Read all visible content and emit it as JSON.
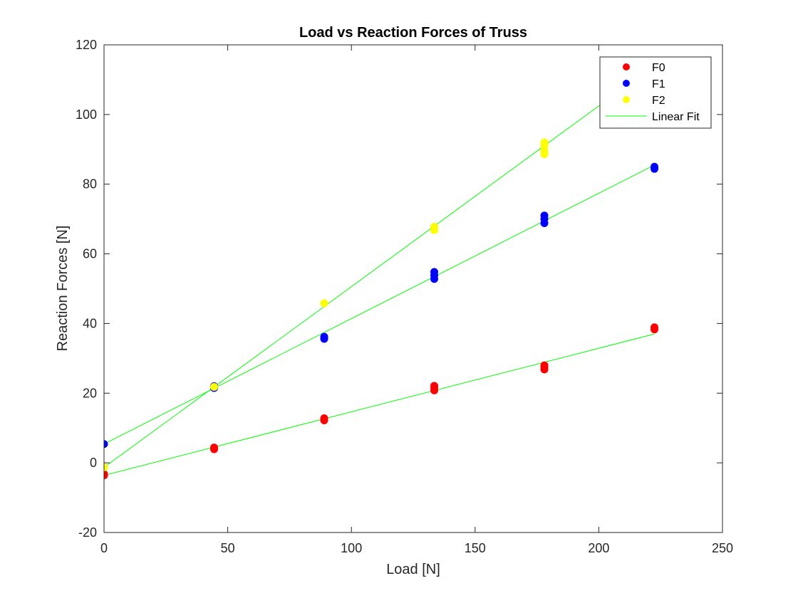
{
  "chart_data": {
    "type": "scatter",
    "title": "Load vs Reaction Forces of Truss",
    "xlabel": "Load [N]",
    "ylabel": "Reaction Forces [N]",
    "xlim": [
      0,
      250
    ],
    "ylim": [
      -20,
      120
    ],
    "xticks": [
      0,
      50,
      100,
      150,
      200,
      250
    ],
    "yticks": [
      -20,
      0,
      20,
      40,
      60,
      80,
      100,
      120
    ],
    "grid": false,
    "legend_position": "top-right",
    "series": [
      {
        "name": "F0",
        "color": "#ff0000",
        "marker": "circle",
        "x": [
          0,
          0,
          44.5,
          44.5,
          89,
          89,
          133.5,
          133.5,
          133.5,
          178,
          178,
          178,
          222.5,
          222.5
        ],
        "y": [
          -3.6,
          -3.2,
          3.9,
          4.4,
          12.2,
          12.8,
          20.8,
          21.5,
          22.1,
          26.8,
          27.4,
          28.0,
          38.3,
          38.9
        ]
      },
      {
        "name": "F1",
        "color": "#0000ff",
        "marker": "circle",
        "x": [
          0,
          44.5,
          44.5,
          89,
          89,
          133.5,
          133.5,
          133.5,
          178,
          178,
          178,
          222.5,
          222.5
        ],
        "y": [
          5.4,
          21.5,
          22.0,
          35.6,
          36.2,
          52.8,
          53.8,
          54.8,
          68.8,
          70.0,
          71.0,
          84.4,
          85.0
        ]
      },
      {
        "name": "F2",
        "color": "#ffff00",
        "marker": "circle",
        "x": [
          0,
          44.5,
          89,
          133.5,
          133.5,
          178,
          178,
          178,
          178
        ],
        "y": [
          -1.3,
          21.8,
          45.8,
          66.8,
          67.8,
          88.6,
          89.6,
          91.0,
          92.0
        ]
      }
    ],
    "fit_lines": {
      "name": "Linear Fit",
      "color": "#00ff00",
      "lines": [
        {
          "for": "F0",
          "x": [
            0,
            222.5
          ],
          "y": [
            -3.6,
            37.0
          ]
        },
        {
          "for": "F1",
          "x": [
            0,
            222.5
          ],
          "y": [
            5.4,
            85.5
          ]
        },
        {
          "for": "F2",
          "x": [
            0,
            202
          ],
          "y": [
            -1.3,
            103.5
          ]
        }
      ]
    }
  }
}
